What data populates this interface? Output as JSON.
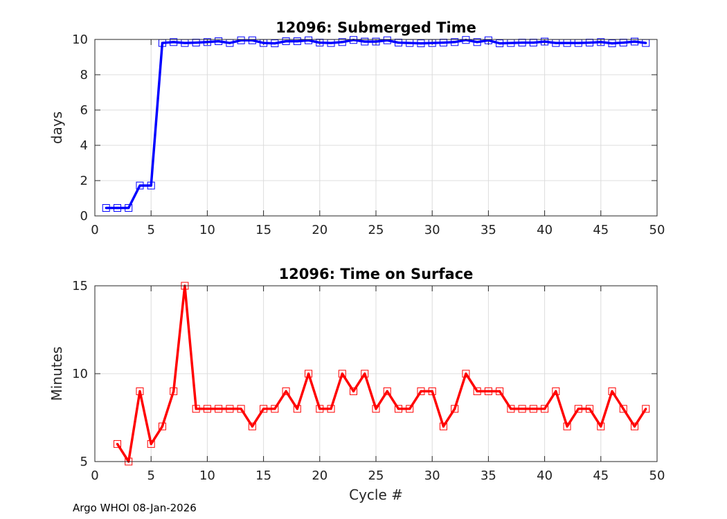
{
  "footer": "Argo WHOI 08-Jan-2026",
  "chart_data": [
    {
      "type": "line",
      "title": "12096: Submerged Time",
      "xlabel": "",
      "ylabel": "days",
      "xlim": [
        0,
        50
      ],
      "ylim": [
        0,
        10
      ],
      "xticks": [
        0,
        5,
        10,
        15,
        20,
        25,
        30,
        35,
        40,
        45,
        50
      ],
      "yticks": [
        0,
        2,
        4,
        6,
        8,
        10
      ],
      "grid": true,
      "color": "#0000ff",
      "series": [
        {
          "name": "Submerged Time",
          "x": [
            1,
            2,
            3,
            4,
            5,
            6,
            7,
            8,
            9,
            10,
            11,
            12,
            13,
            14,
            15,
            16,
            17,
            18,
            19,
            20,
            21,
            22,
            23,
            24,
            25,
            26,
            27,
            28,
            29,
            30,
            31,
            32,
            33,
            34,
            35,
            36,
            37,
            38,
            39,
            40,
            41,
            42,
            43,
            44,
            45,
            46,
            47,
            48,
            49
          ],
          "values": [
            0.45,
            0.45,
            0.45,
            1.72,
            1.72,
            9.8,
            9.85,
            9.8,
            9.82,
            9.85,
            9.9,
            9.8,
            9.95,
            9.95,
            9.8,
            9.78,
            9.9,
            9.9,
            9.95,
            9.82,
            9.8,
            9.85,
            9.97,
            9.88,
            9.88,
            9.95,
            9.82,
            9.8,
            9.78,
            9.8,
            9.82,
            9.85,
            9.97,
            9.85,
            9.95,
            9.78,
            9.8,
            9.82,
            9.82,
            9.88,
            9.8,
            9.8,
            9.8,
            9.82,
            9.85,
            9.78,
            9.82,
            9.88,
            9.8
          ]
        }
      ]
    },
    {
      "type": "line",
      "title": "12096: Time on Surface",
      "xlabel": "Cycle #",
      "ylabel": "Minutes",
      "xlim": [
        0,
        50
      ],
      "ylim": [
        5,
        15
      ],
      "xticks": [
        0,
        5,
        10,
        15,
        20,
        25,
        30,
        35,
        40,
        45,
        50
      ],
      "yticks": [
        5,
        10,
        15
      ],
      "grid": true,
      "color": "#ff0000",
      "series": [
        {
          "name": "Time on Surface",
          "x": [
            2,
            3,
            4,
            5,
            6,
            7,
            8,
            9,
            10,
            11,
            12,
            13,
            14,
            15,
            16,
            17,
            18,
            19,
            20,
            21,
            22,
            23,
            24,
            25,
            26,
            27,
            28,
            29,
            30,
            31,
            32,
            33,
            34,
            35,
            36,
            37,
            38,
            39,
            40,
            41,
            42,
            43,
            44,
            45,
            46,
            47,
            48,
            49
          ],
          "values": [
            6,
            5,
            9,
            6,
            7,
            9,
            15,
            8,
            8,
            8,
            8,
            8,
            7,
            8,
            8,
            9,
            8,
            10,
            8,
            8,
            10,
            9,
            10,
            8,
            9,
            8,
            8,
            9,
            9,
            7,
            8,
            10,
            9,
            9,
            9,
            8,
            8,
            8,
            8,
            9,
            7,
            8,
            8,
            7,
            9,
            8,
            7,
            8
          ]
        }
      ]
    }
  ]
}
